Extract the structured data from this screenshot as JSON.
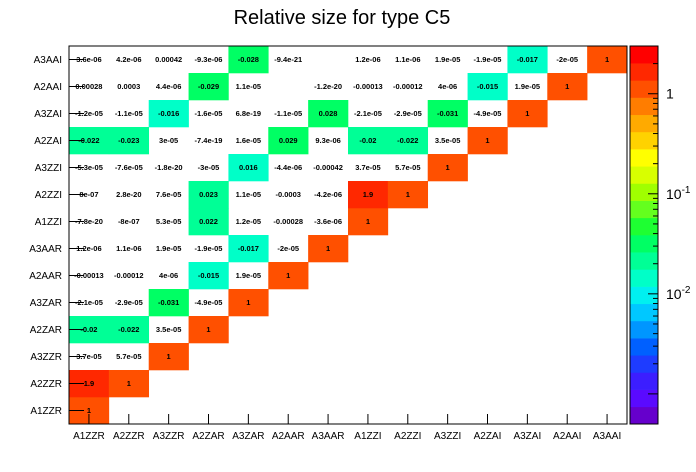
{
  "chart_data": {
    "type": "heatmap",
    "title": "Relative size for type C5",
    "xlabel": "",
    "ylabel": "",
    "x_labels": [
      "A1ZZR",
      "A2ZZR",
      "A3ZZR",
      "A2ZAR",
      "A3ZAR",
      "A2AAR",
      "A3AAR",
      "A1ZZI",
      "A2ZZI",
      "A3ZZI",
      "A2ZAI",
      "A3ZAI",
      "A2AAI",
      "A3AAI"
    ],
    "y_labels": [
      "A1ZZR",
      "A2ZZR",
      "A3ZZR",
      "A2ZAR",
      "A3ZAR",
      "A2AAR",
      "A3AAR",
      "A1ZZI",
      "A2ZZI",
      "A3ZZI",
      "A2ZAI",
      "A3ZAI",
      "A2AAI",
      "A3AAI"
    ],
    "colorbar": {
      "scale": "log",
      "range": [
        0.0005,
        3
      ],
      "tick_labels": [
        "1",
        "10^-1",
        "10^-2"
      ],
      "tick_values": [
        1,
        0.1,
        0.01
      ]
    },
    "cells": [
      {
        "x": 0,
        "y": 0,
        "label": "1",
        "value": 1
      },
      {
        "x": 0,
        "y": 1,
        "label": "1.9",
        "value": 1.9
      },
      {
        "x": 1,
        "y": 1,
        "label": "1",
        "value": 1
      },
      {
        "x": 0,
        "y": 2,
        "label": "3.7e-05",
        "value": 3.7e-05
      },
      {
        "x": 1,
        "y": 2,
        "label": "5.7e-05",
        "value": 5.7e-05
      },
      {
        "x": 2,
        "y": 2,
        "label": "1",
        "value": 1
      },
      {
        "x": 0,
        "y": 3,
        "label": "-0.02",
        "value": -0.02
      },
      {
        "x": 1,
        "y": 3,
        "label": "-0.022",
        "value": -0.022
      },
      {
        "x": 2,
        "y": 3,
        "label": "3.5e-05",
        "value": 3.5e-05
      },
      {
        "x": 3,
        "y": 3,
        "label": "1",
        "value": 1
      },
      {
        "x": 0,
        "y": 4,
        "label": "-2.1e-05",
        "value": -2.1e-05
      },
      {
        "x": 1,
        "y": 4,
        "label": "-2.9e-05",
        "value": -2.9e-05
      },
      {
        "x": 2,
        "y": 4,
        "label": "-0.031",
        "value": -0.031
      },
      {
        "x": 3,
        "y": 4,
        "label": "-4.9e-05",
        "value": -4.9e-05
      },
      {
        "x": 4,
        "y": 4,
        "label": "1",
        "value": 1
      },
      {
        "x": 0,
        "y": 5,
        "label": "-0.00013",
        "value": -0.00013
      },
      {
        "x": 1,
        "y": 5,
        "label": "-0.00012",
        "value": -0.00012
      },
      {
        "x": 2,
        "y": 5,
        "label": "4e-06",
        "value": 4e-06
      },
      {
        "x": 3,
        "y": 5,
        "label": "-0.015",
        "value": -0.015
      },
      {
        "x": 4,
        "y": 5,
        "label": "1.9e-05",
        "value": 1.9e-05
      },
      {
        "x": 5,
        "y": 5,
        "label": "1",
        "value": 1
      },
      {
        "x": 0,
        "y": 6,
        "label": "1.2e-06",
        "value": 1.2e-06
      },
      {
        "x": 1,
        "y": 6,
        "label": "1.1e-06",
        "value": 1.1e-06
      },
      {
        "x": 2,
        "y": 6,
        "label": "1.9e-05",
        "value": 1.9e-05
      },
      {
        "x": 3,
        "y": 6,
        "label": "-1.9e-05",
        "value": -1.9e-05
      },
      {
        "x": 4,
        "y": 6,
        "label": "-0.017",
        "value": -0.017
      },
      {
        "x": 5,
        "y": 6,
        "label": "-2e-05",
        "value": -2e-05
      },
      {
        "x": 6,
        "y": 6,
        "label": "1",
        "value": 1
      },
      {
        "x": 0,
        "y": 7,
        "label": "-7.8e-20",
        "value": -7.8e-20
      },
      {
        "x": 1,
        "y": 7,
        "label": "-8e-07",
        "value": -8e-07
      },
      {
        "x": 2,
        "y": 7,
        "label": "5.3e-05",
        "value": 5.3e-05
      },
      {
        "x": 3,
        "y": 7,
        "label": "0.022",
        "value": 0.022
      },
      {
        "x": 4,
        "y": 7,
        "label": "1.2e-05",
        "value": 1.2e-05
      },
      {
        "x": 5,
        "y": 7,
        "label": "-0.00028",
        "value": -0.00028
      },
      {
        "x": 6,
        "y": 7,
        "label": "-3.6e-06",
        "value": -3.6e-06
      },
      {
        "x": 7,
        "y": 7,
        "label": "1",
        "value": 1
      },
      {
        "x": 0,
        "y": 8,
        "label": "8e-07",
        "value": 8e-07
      },
      {
        "x": 1,
        "y": 8,
        "label": "2.8e-20",
        "value": 2.8e-20
      },
      {
        "x": 2,
        "y": 8,
        "label": "7.6e-05",
        "value": 7.6e-05
      },
      {
        "x": 3,
        "y": 8,
        "label": "0.023",
        "value": 0.023
      },
      {
        "x": 4,
        "y": 8,
        "label": "1.1e-05",
        "value": 1.1e-05
      },
      {
        "x": 5,
        "y": 8,
        "label": "-0.0003",
        "value": -0.0003
      },
      {
        "x": 6,
        "y": 8,
        "label": "-4.2e-06",
        "value": -4.2e-06
      },
      {
        "x": 7,
        "y": 8,
        "label": "1.9",
        "value": 1.9
      },
      {
        "x": 8,
        "y": 8,
        "label": "1",
        "value": 1
      },
      {
        "x": 0,
        "y": 9,
        "label": "-5.3e-05",
        "value": -5.3e-05
      },
      {
        "x": 1,
        "y": 9,
        "label": "-7.6e-05",
        "value": -7.6e-05
      },
      {
        "x": 2,
        "y": 9,
        "label": "-1.8e-20",
        "value": -1.8e-20
      },
      {
        "x": 3,
        "y": 9,
        "label": "-3e-05",
        "value": -3e-05
      },
      {
        "x": 4,
        "y": 9,
        "label": "0.016",
        "value": 0.016
      },
      {
        "x": 5,
        "y": 9,
        "label": "-4.4e-06",
        "value": -4.4e-06
      },
      {
        "x": 6,
        "y": 9,
        "label": "-0.00042",
        "value": -0.00042
      },
      {
        "x": 7,
        "y": 9,
        "label": "3.7e-05",
        "value": 3.7e-05
      },
      {
        "x": 8,
        "y": 9,
        "label": "5.7e-05",
        "value": 5.7e-05
      },
      {
        "x": 9,
        "y": 9,
        "label": "1",
        "value": 1
      },
      {
        "x": 0,
        "y": 10,
        "label": "-0.022",
        "value": -0.022
      },
      {
        "x": 1,
        "y": 10,
        "label": "-0.023",
        "value": -0.023
      },
      {
        "x": 2,
        "y": 10,
        "label": "3e-05",
        "value": 3e-05
      },
      {
        "x": 3,
        "y": 10,
        "label": "-7.4e-19",
        "value": -7.4e-19
      },
      {
        "x": 4,
        "y": 10,
        "label": "1.6e-05",
        "value": 1.6e-05
      },
      {
        "x": 5,
        "y": 10,
        "label": "0.029",
        "value": 0.029
      },
      {
        "x": 6,
        "y": 10,
        "label": "9.3e-06",
        "value": 9.3e-06
      },
      {
        "x": 7,
        "y": 10,
        "label": "-0.02",
        "value": -0.02
      },
      {
        "x": 8,
        "y": 10,
        "label": "-0.022",
        "value": -0.022
      },
      {
        "x": 9,
        "y": 10,
        "label": "3.5e-05",
        "value": 3.5e-05
      },
      {
        "x": 10,
        "y": 10,
        "label": "1",
        "value": 1
      },
      {
        "x": 0,
        "y": 11,
        "label": "-1.2e-05",
        "value": -1.2e-05
      },
      {
        "x": 1,
        "y": 11,
        "label": "-1.1e-05",
        "value": -1.1e-05
      },
      {
        "x": 2,
        "y": 11,
        "label": "-0.016",
        "value": -0.016
      },
      {
        "x": 3,
        "y": 11,
        "label": "-1.6e-05",
        "value": -1.6e-05
      },
      {
        "x": 4,
        "y": 11,
        "label": "6.8e-19",
        "value": 6.8e-19
      },
      {
        "x": 5,
        "y": 11,
        "label": "-1.1e-05",
        "value": -1.1e-05
      },
      {
        "x": 6,
        "y": 11,
        "label": "0.028",
        "value": 0.028
      },
      {
        "x": 7,
        "y": 11,
        "label": "-2.1e-05",
        "value": -2.1e-05
      },
      {
        "x": 8,
        "y": 11,
        "label": "-2.9e-05",
        "value": -2.9e-05
      },
      {
        "x": 9,
        "y": 11,
        "label": "-0.031",
        "value": -0.031
      },
      {
        "x": 10,
        "y": 11,
        "label": "-4.9e-05",
        "value": -4.9e-05
      },
      {
        "x": 11,
        "y": 11,
        "label": "1",
        "value": 1
      },
      {
        "x": 0,
        "y": 12,
        "label": "0.00028",
        "value": 0.00028
      },
      {
        "x": 1,
        "y": 12,
        "label": "0.0003",
        "value": 0.0003
      },
      {
        "x": 2,
        "y": 12,
        "label": "4.4e-06",
        "value": 4.4e-06
      },
      {
        "x": 3,
        "y": 12,
        "label": "-0.029",
        "value": -0.029
      },
      {
        "x": 4,
        "y": 12,
        "label": "1.1e-05",
        "value": 1.1e-05
      },
      {
        "x": 6,
        "y": 12,
        "label": "-1.2e-20",
        "value": -1.2e-20
      },
      {
        "x": 7,
        "y": 12,
        "label": "-0.00013",
        "value": -0.00013
      },
      {
        "x": 8,
        "y": 12,
        "label": "-0.00012",
        "value": -0.00012
      },
      {
        "x": 9,
        "y": 12,
        "label": "4e-06",
        "value": 4e-06
      },
      {
        "x": 10,
        "y": 12,
        "label": "-0.015",
        "value": -0.015
      },
      {
        "x": 11,
        "y": 12,
        "label": "1.9e-05",
        "value": 1.9e-05
      },
      {
        "x": 12,
        "y": 12,
        "label": "1",
        "value": 1
      },
      {
        "x": 0,
        "y": 13,
        "label": "3.6e-06",
        "value": 3.6e-06
      },
      {
        "x": 1,
        "y": 13,
        "label": "4.2e-06",
        "value": 4.2e-06
      },
      {
        "x": 2,
        "y": 13,
        "label": "0.00042",
        "value": 0.00042
      },
      {
        "x": 3,
        "y": 13,
        "label": "-9.3e-06",
        "value": -9.3e-06
      },
      {
        "x": 4,
        "y": 13,
        "label": "-0.028",
        "value": -0.028
      },
      {
        "x": 5,
        "y": 13,
        "label": "-9.4e-21",
        "value": -9.4e-21
      },
      {
        "x": 7,
        "y": 13,
        "label": "1.2e-06",
        "value": 1.2e-06
      },
      {
        "x": 8,
        "y": 13,
        "label": "1.1e-06",
        "value": 1.1e-06
      },
      {
        "x": 9,
        "y": 13,
        "label": "1.9e-05",
        "value": 1.9e-05
      },
      {
        "x": 10,
        "y": 13,
        "label": "-1.9e-05",
        "value": -1.9e-05
      },
      {
        "x": 11,
        "y": 13,
        "label": "-0.017",
        "value": -0.017
      },
      {
        "x": 12,
        "y": 13,
        "label": "-2e-05",
        "value": -2e-05
      },
      {
        "x": 13,
        "y": 13,
        "label": "1",
        "value": 1
      }
    ]
  },
  "colors": {
    "palette": [
      "#6600cc",
      "#5a0aff",
      "#3c1eff",
      "#1e3cff",
      "#0060ff",
      "#0096ff",
      "#00c8ff",
      "#00f0f0",
      "#00ffc8",
      "#00ff96",
      "#00ff64",
      "#1eff32",
      "#64ff1e",
      "#a0ff00",
      "#d8ff00",
      "#ffff00",
      "#ffd200",
      "#ffaa00",
      "#ff7d00",
      "#ff5000",
      "#ff2800",
      "#ff0000"
    ],
    "background": "#ffffff"
  }
}
